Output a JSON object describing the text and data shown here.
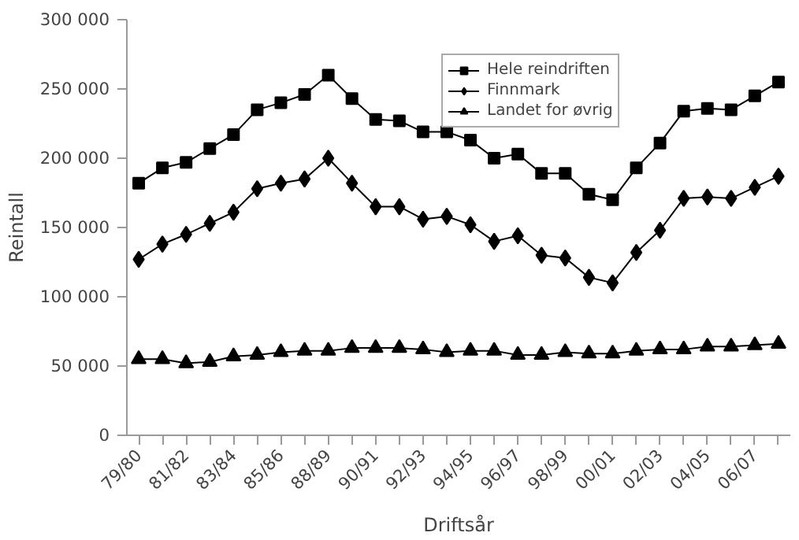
{
  "chart_data": {
    "type": "line",
    "xlabel": "Driftsår",
    "ylabel": "Reintall",
    "categories": [
      "79/80",
      null,
      "81/82",
      null,
      "83/84",
      null,
      "85/86",
      null,
      "88/89",
      null,
      "90/91",
      null,
      "92/93",
      null,
      "94/95",
      null,
      "96/97",
      null,
      "98/99",
      null,
      "00/01",
      null,
      "02/03",
      null,
      "04/05",
      null,
      "06/07",
      null
    ],
    "ylim": [
      0,
      300000
    ],
    "yticks": [
      {
        "value": 0,
        "label": "0"
      },
      {
        "value": 50000,
        "label": "50 000"
      },
      {
        "value": 100000,
        "label": "100 000"
      },
      {
        "value": 150000,
        "label": "150 000"
      },
      {
        "value": 200000,
        "label": "200 000"
      },
      {
        "value": 250000,
        "label": "250 000"
      },
      {
        "value": 300000,
        "label": "300 000"
      }
    ],
    "grid": false,
    "legend": "top",
    "line_style": "solid",
    "series": [
      {
        "name": "Hele reindriften",
        "color": "#000000",
        "marker": "square",
        "values": [
          182000,
          193000,
          197000,
          207000,
          217000,
          235000,
          240000,
          246000,
          260000,
          243000,
          228000,
          227000,
          219000,
          219000,
          213000,
          200000,
          203000,
          189000,
          189000,
          174000,
          170000,
          193000,
          211000,
          234000,
          236000,
          235000,
          245000,
          255000
        ]
      },
      {
        "name": "Finnmark",
        "color": "#000000",
        "marker": "diamond",
        "values": [
          127000,
          138000,
          145000,
          153000,
          161000,
          178000,
          182000,
          185000,
          200000,
          182000,
          165000,
          165000,
          156000,
          158000,
          152000,
          140000,
          144000,
          130000,
          128000,
          114000,
          110000,
          132000,
          148000,
          171000,
          172000,
          171000,
          179000,
          187000
        ]
      },
      {
        "name": "Landet for øvrig",
        "color": "#000000",
        "marker": "triangle",
        "values": [
          55000,
          55000,
          52000,
          53000,
          57000,
          58000,
          60000,
          61000,
          61000,
          63000,
          63000,
          63000,
          62000,
          60000,
          61000,
          61000,
          58000,
          58000,
          60000,
          59000,
          59000,
          61000,
          62000,
          62000,
          64000,
          64000,
          65000,
          66000
        ]
      }
    ]
  }
}
